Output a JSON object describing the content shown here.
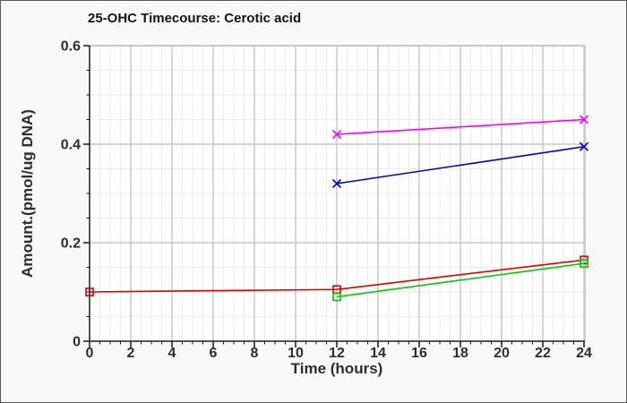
{
  "window": {
    "background": "#f9f9f9",
    "border_color": "#5a5a5a"
  },
  "chart_data": {
    "type": "line",
    "title": "25-OHC Timecourse: Cerotic acid",
    "xlabel": "Time (hours)",
    "ylabel": "Amount.(pmol/ug DNA)",
    "xlim": [
      0,
      24
    ],
    "ylim": [
      0,
      0.6
    ],
    "x_tick_values": [
      0,
      2,
      4,
      6,
      8,
      10,
      12,
      14,
      16,
      18,
      20,
      22,
      24
    ],
    "x_tick_labels": [
      "0",
      "2",
      "4",
      "6",
      "8",
      "10",
      "12",
      "14",
      "16",
      "18",
      "20",
      "22",
      "24"
    ],
    "y_tick_values": [
      0,
      0.2,
      0.4,
      0.6
    ],
    "y_tick_labels": [
      "0",
      "0.2",
      "0.4",
      "0.6"
    ],
    "x_minor_step": 0.5,
    "y_minor_step": 0.05,
    "grid": {
      "major_color": "#c9c9c9",
      "minor_color": "#ececec",
      "on": true
    },
    "plot_background": "#fefefe",
    "axis_color": "#1a1a1a",
    "legend_position": "none",
    "series": [
      {
        "name": "magenta-series",
        "color": "#ff00ff",
        "marker": "x",
        "x": [
          12,
          24
        ],
        "y": [
          0.42,
          0.45
        ]
      },
      {
        "name": "blue-series",
        "color": "#0000cc",
        "marker": "x",
        "x": [
          12,
          24
        ],
        "y": [
          0.32,
          0.395
        ]
      },
      {
        "name": "red-series",
        "color": "#dd0000",
        "marker": "open-square",
        "x": [
          0,
          12,
          24
        ],
        "y": [
          0.1,
          0.105,
          0.165
        ]
      },
      {
        "name": "green-series",
        "color": "#00cc00",
        "marker": "open-square",
        "x": [
          12,
          24
        ],
        "y": [
          0.09,
          0.158
        ]
      }
    ]
  }
}
